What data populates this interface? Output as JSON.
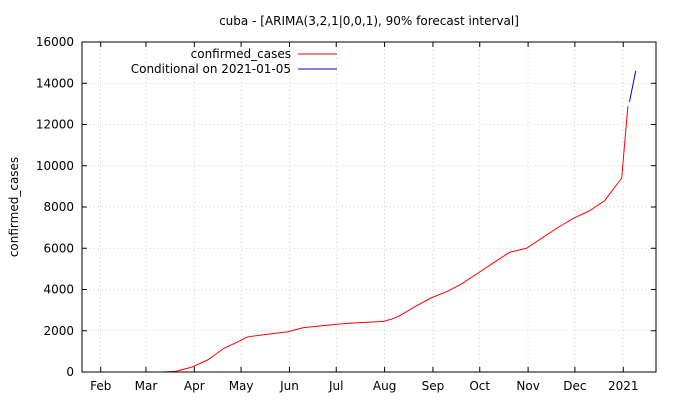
{
  "chart_data": {
    "type": "line",
    "title": "cuba -  [ARIMA(3,2,1|0,0,1), 90% forecast interval]",
    "xlabel": "",
    "ylabel": "confirmed_cases",
    "x_tick_labels": [
      "Feb",
      "Mar",
      "Apr",
      "May",
      "Jun",
      "Jul",
      "Aug",
      "Sep",
      "Oct",
      "Nov",
      "Dec",
      "2021"
    ],
    "x_tick_dates": [
      "2020-02-01",
      "2020-03-01",
      "2020-04-01",
      "2020-05-01",
      "2020-06-01",
      "2020-07-01",
      "2020-08-01",
      "2020-09-01",
      "2020-10-01",
      "2020-11-01",
      "2020-12-01",
      "2021-01-01"
    ],
    "xlim": [
      "2020-01-20",
      "2021-01-22"
    ],
    "ylim": [
      0,
      16000
    ],
    "y_ticks": [
      0,
      2000,
      4000,
      6000,
      8000,
      10000,
      12000,
      14000,
      16000
    ],
    "grid": true,
    "legend_position": "top-left",
    "series": [
      {
        "name": "confirmed_cases",
        "color": "#ff0000",
        "x": [
          "2020-03-11",
          "2020-03-20",
          "2020-03-31",
          "2020-04-10",
          "2020-04-20",
          "2020-04-30",
          "2020-05-05",
          "2020-05-20",
          "2020-05-31",
          "2020-06-10",
          "2020-06-30",
          "2020-07-10",
          "2020-07-31",
          "2020-08-05",
          "2020-08-10",
          "2020-08-20",
          "2020-08-31",
          "2020-09-10",
          "2020-09-20",
          "2020-09-30",
          "2020-10-10",
          "2020-10-20",
          "2020-10-31",
          "2020-11-10",
          "2020-11-20",
          "2020-11-30",
          "2020-12-10",
          "2020-12-20",
          "2020-12-31",
          "2021-01-04"
        ],
        "values": [
          0,
          30,
          250,
          600,
          1150,
          1500,
          1700,
          1850,
          1950,
          2150,
          2300,
          2370,
          2450,
          2550,
          2700,
          3150,
          3600,
          3900,
          4300,
          4800,
          5300,
          5800,
          6000,
          6500,
          7000,
          7450,
          7800,
          8300,
          9400,
          12900
        ]
      },
      {
        "name": "Conditional on 2021-01-05",
        "color": "#0000cc",
        "x": [
          "2021-01-05",
          "2021-01-09"
        ],
        "values": [
          13100,
          14600
        ]
      }
    ]
  }
}
